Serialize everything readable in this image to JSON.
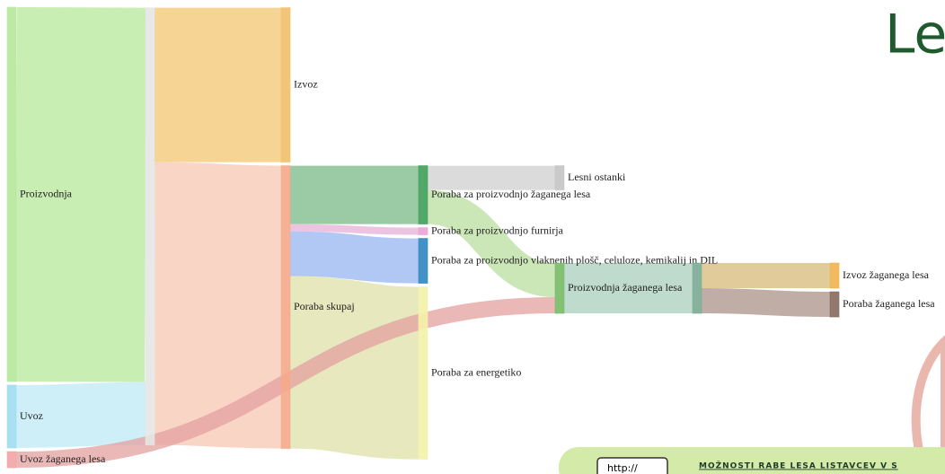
{
  "chart_data": {
    "type": "sankey",
    "nodes": [
      {
        "name": "Proizvodnja",
        "color": "#b5e89a"
      },
      {
        "name": "Uvoz",
        "color": "#9fdcf0"
      },
      {
        "name": "Uvoz žaganega lesa",
        "color": "#f3a3a3"
      },
      {
        "name": null,
        "color": "#e6e6e6"
      },
      {
        "name": "Izvoz",
        "color": "#f2bf6a"
      },
      {
        "name": "Poraba skupaj",
        "color": "#f4a988"
      },
      {
        "name": "Poraba za proizvodnjo žaganega lesa",
        "color": "#3f9e58"
      },
      {
        "name": "Poraba za proizvodnjo furnirja",
        "color": "#eba4d6"
      },
      {
        "name": "Poraba za proizvodnjo vlaknenih plošč, celuloze, kemikalij in DIL",
        "color": "#2f86bf"
      },
      {
        "name": "Poraba za energetiko",
        "color": "#f4f2a8"
      },
      {
        "name": "Lesni ostanki",
        "color": "#c4c4c4"
      },
      {
        "name": "Proizvodnja žaganega lesa",
        "color": "#76bb66"
      },
      {
        "name": null,
        "color": "#7aaa94"
      },
      {
        "name": "Izvoz žaganega lesa",
        "color": "#f0b24c"
      },
      {
        "name": "Poraba žaganega lesa",
        "color": "#86685c"
      }
    ],
    "links": [
      {
        "source": 0,
        "target": 3,
        "value": 417,
        "color": "#b5e89a"
      },
      {
        "source": 1,
        "target": 3,
        "value": 70,
        "color": "#bde9f5"
      },
      {
        "source": 3,
        "target": 4,
        "value": 172,
        "color": "#f2c670"
      },
      {
        "source": 3,
        "target": 5,
        "value": 315,
        "color": "#f7c7b2"
      },
      {
        "source": 5,
        "target": 6,
        "value": 65,
        "color": "#79b985"
      },
      {
        "source": 5,
        "target": 7,
        "value": 8,
        "color": "#e6b0d8"
      },
      {
        "source": 5,
        "target": 8,
        "value": 50,
        "color": "#97b6f2"
      },
      {
        "source": 5,
        "target": 9,
        "value": 192,
        "color": "#dfe0a8"
      },
      {
        "source": 6,
        "target": 10,
        "value": 27,
        "color": "#cfcfcf"
      },
      {
        "source": 6,
        "target": 11,
        "value": 38,
        "color": "#b9dfa0"
      },
      {
        "source": 2,
        "target": 11,
        "value": 18,
        "color": "#e4a0a0"
      },
      {
        "source": 11,
        "target": 12,
        "value": 56,
        "color": "#a9cfbd"
      },
      {
        "source": 12,
        "target": 13,
        "value": 28,
        "color": "#d7b97a"
      },
      {
        "source": 12,
        "target": 14,
        "value": 28,
        "color": "#a99188"
      }
    ]
  },
  "heading": "Le",
  "banner": {
    "link": "http://",
    "text": "MOŽNOSTI RABE LESA LISTAVCEV V S"
  }
}
